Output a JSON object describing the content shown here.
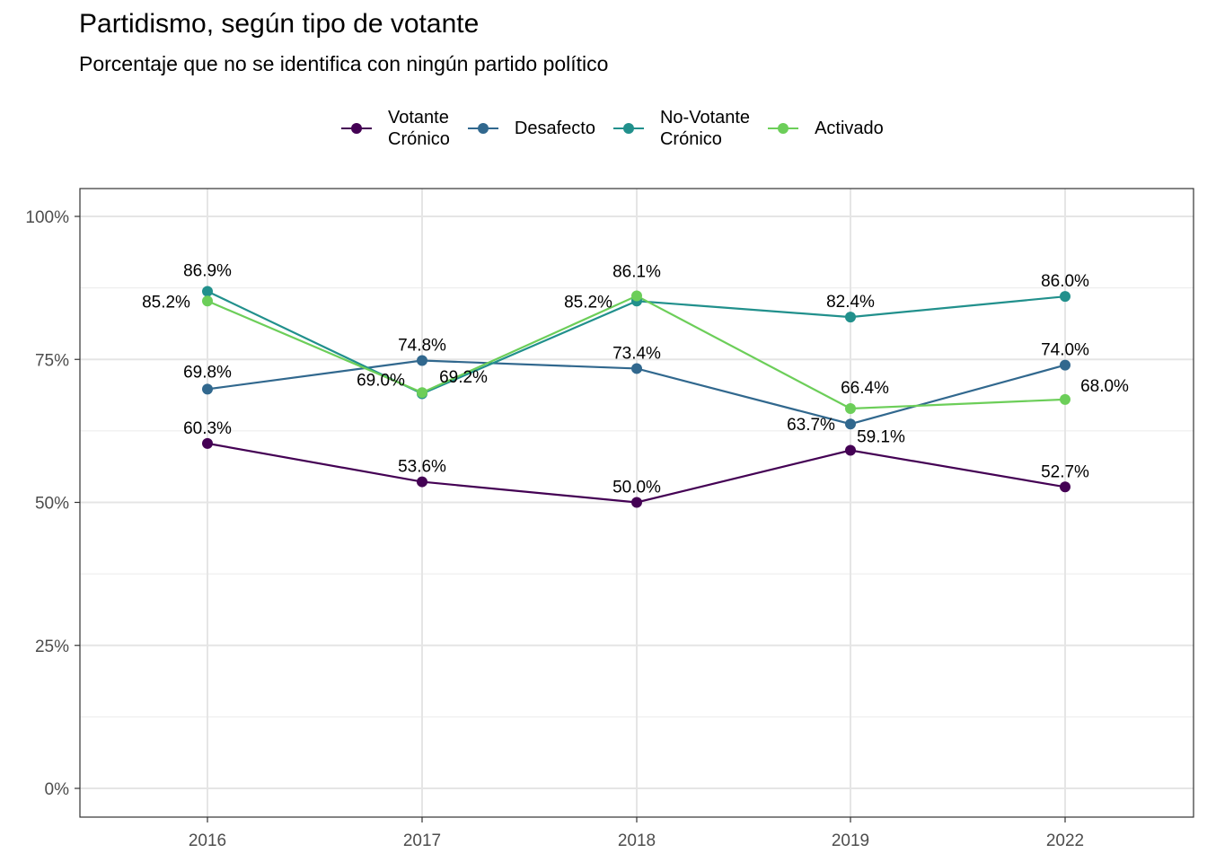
{
  "chart_data": {
    "type": "line",
    "title": "Partidismo, según tipo de votante",
    "subtitle": "Porcentaje que no se identifica con ningún partido político",
    "categories": [
      "2016",
      "2017",
      "2018",
      "2019",
      "2022"
    ],
    "ylim": [
      0,
      100
    ],
    "yticks": [
      0,
      25,
      50,
      75,
      100
    ],
    "ytick_labels": [
      "0%",
      "25%",
      "50%",
      "75%",
      "100%"
    ],
    "grid": true,
    "legend_position": "top",
    "series": [
      {
        "name": "Votante\nCrónico",
        "color": "#440154",
        "values": [
          60.3,
          53.6,
          50.0,
          59.1,
          52.7
        ],
        "labels": [
          "60.3%",
          "53.6%",
          "50.0%",
          "59.1%",
          "52.7%"
        ]
      },
      {
        "name": "Desafecto",
        "color": "#31688E",
        "values": [
          69.8,
          74.8,
          73.4,
          63.7,
          74.0
        ],
        "labels": [
          "69.8%",
          "74.8%",
          "73.4%",
          "63.7%",
          "74.0%"
        ]
      },
      {
        "name": "No-Votante\nCrónico",
        "color": "#21908C",
        "values": [
          86.9,
          69.0,
          85.2,
          82.4,
          86.0
        ],
        "labels": [
          "86.9%",
          "69.0%",
          "85.2%",
          "82.4%",
          "86.0%"
        ]
      },
      {
        "name": "Activado",
        "color": "#6CCE59",
        "values": [
          85.2,
          69.2,
          86.1,
          66.4,
          68.0
        ],
        "labels": [
          "85.2%",
          "69.2%",
          "86.1%",
          "66.4%",
          "68.0%"
        ]
      }
    ]
  }
}
